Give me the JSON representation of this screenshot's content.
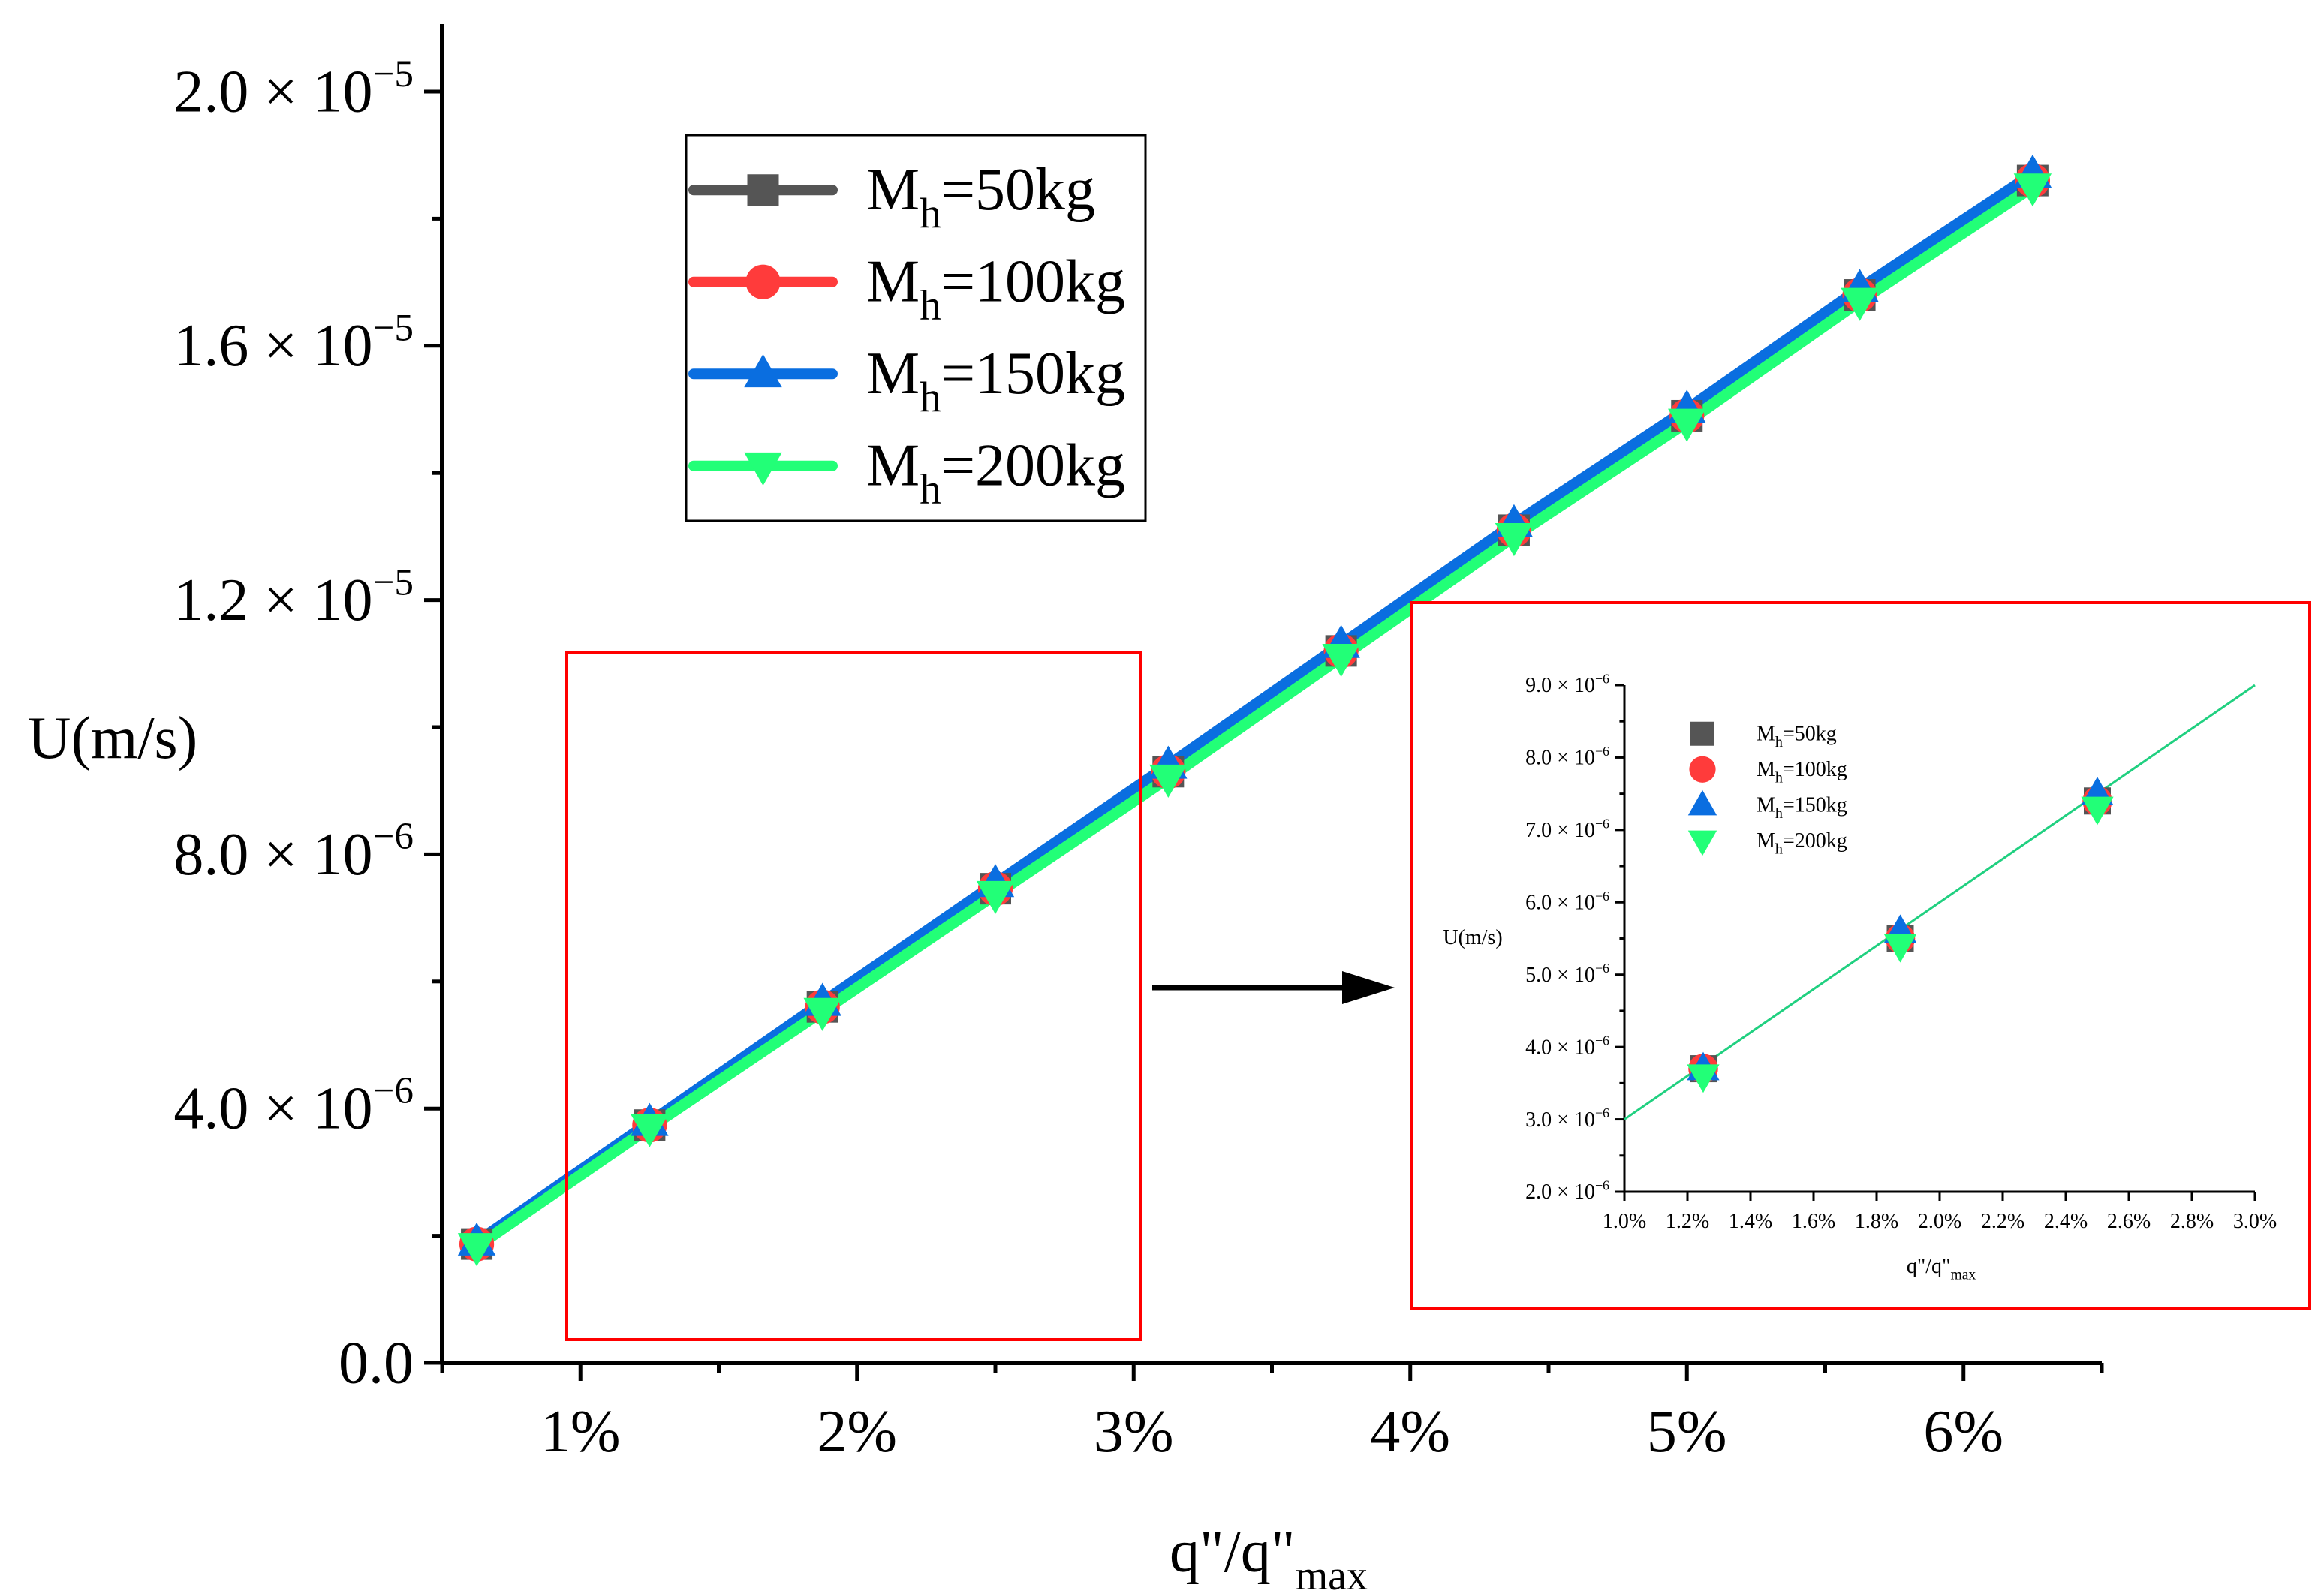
{
  "colors": {
    "axis": "#000000",
    "frame": "#ff0000",
    "s50": "#555555",
    "s100": "#ff3b3b",
    "s150": "#0a6ee0",
    "s200": "#22ff77",
    "inset_line": "#20d080"
  },
  "chart_data": [
    {
      "type": "line",
      "ylabel": "U(m/s)",
      "xlabel_main": "q\"/q\"",
      "xlabel_sub": "max",
      "xlim": [
        0.5,
        6.5
      ],
      "ylim": [
        0,
        2e-05
      ],
      "xticks": [
        {
          "v": 1,
          "label": "1%"
        },
        {
          "v": 2,
          "label": "2%"
        },
        {
          "v": 3,
          "label": "3%"
        },
        {
          "v": 4,
          "label": "4%"
        },
        {
          "v": 5,
          "label": "5%"
        },
        {
          "v": 6,
          "label": "6%"
        }
      ],
      "yticks": [
        {
          "v": 0,
          "mant": "0.0",
          "exp": ""
        },
        {
          "v": 4e-06,
          "mant": "4.0",
          "exp": "−6"
        },
        {
          "v": 8e-06,
          "mant": "8.0",
          "exp": "−6"
        },
        {
          "v": 1.2e-05,
          "mant": "1.2",
          "exp": "−5"
        },
        {
          "v": 1.6e-05,
          "mant": "1.6",
          "exp": "−5"
        },
        {
          "v": 2e-05,
          "mant": "2.0",
          "exp": "−5"
        }
      ],
      "x": [
        0.625,
        1.25,
        1.875,
        2.5,
        3.125,
        3.75,
        4.375,
        5.0,
        5.625,
        6.25
      ],
      "series": [
        {
          "name": "M",
          "sub": "h",
          "suffix": "=50kg",
          "marker": "square",
          "color_key": "s50",
          "values": [
            1.87e-06,
            3.74e-06,
            5.6e-06,
            7.46e-06,
            9.3e-06,
            1.12e-05,
            1.31e-05,
            1.49e-05,
            1.68e-05,
            1.86e-05
          ]
        },
        {
          "name": "M",
          "sub": "h",
          "suffix": "=100kg",
          "marker": "circle",
          "color_key": "s100",
          "values": [
            1.87e-06,
            3.74e-06,
            5.6e-06,
            7.46e-06,
            9.3e-06,
            1.12e-05,
            1.31e-05,
            1.49e-05,
            1.68e-05,
            1.86e-05
          ]
        },
        {
          "name": "M",
          "sub": "h",
          "suffix": "=150kg",
          "marker": "triangle-up",
          "color_key": "s150",
          "values": [
            1.9e-06,
            3.78e-06,
            5.67e-06,
            7.54e-06,
            9.4e-06,
            1.13e-05,
            1.32e-05,
            1.5e-05,
            1.69e-05,
            1.87e-05
          ]
        },
        {
          "name": "M",
          "sub": "h",
          "suffix": "=200kg",
          "marker": "triangle-down",
          "color_key": "s200",
          "values": [
            1.83e-06,
            3.7e-06,
            5.53e-06,
            7.37e-06,
            9.2e-06,
            1.11e-05,
            1.3e-05,
            1.48e-05,
            1.67e-05,
            1.85e-05
          ]
        }
      ]
    },
    {
      "type": "line",
      "ylabel": "U(m/s)",
      "xlabel_main": "q\"/q\"",
      "xlabel_sub": "max",
      "xlim": [
        1.0,
        3.0
      ],
      "ylim": [
        2e-06,
        9e-06
      ],
      "xticks": [
        {
          "v": 1.0,
          "label": "1.0%"
        },
        {
          "v": 1.2,
          "label": "1.2%"
        },
        {
          "v": 1.4,
          "label": "1.4%"
        },
        {
          "v": 1.6,
          "label": "1.6%"
        },
        {
          "v": 1.8,
          "label": "1.8%"
        },
        {
          "v": 2.0,
          "label": "2.0%"
        },
        {
          "v": 2.2,
          "label": "2.2%"
        },
        {
          "v": 2.4,
          "label": "2.4%"
        },
        {
          "v": 2.6,
          "label": "2.6%"
        },
        {
          "v": 2.8,
          "label": "2.8%"
        },
        {
          "v": 3.0,
          "label": "3.0%"
        }
      ],
      "yticks": [
        {
          "v": 2e-06,
          "mant": "2.0",
          "exp": "−6"
        },
        {
          "v": 3e-06,
          "mant": "3.0",
          "exp": "−6"
        },
        {
          "v": 4e-06,
          "mant": "4.0",
          "exp": "−6"
        },
        {
          "v": 5e-06,
          "mant": "5.0",
          "exp": "−6"
        },
        {
          "v": 6e-06,
          "mant": "6.0",
          "exp": "−6"
        },
        {
          "v": 7e-06,
          "mant": "7.0",
          "exp": "−6"
        },
        {
          "v": 8e-06,
          "mant": "8.0",
          "exp": "−6"
        },
        {
          "v": 9e-06,
          "mant": "9.0",
          "exp": "−6"
        }
      ],
      "x": [
        1.25,
        1.875,
        2.5
      ],
      "fit_line": {
        "x": [
          1.0,
          3.0
        ],
        "y": [
          3e-06,
          9e-06
        ]
      },
      "series": [
        {
          "name": "M",
          "sub": "h",
          "suffix": "=50kg",
          "marker": "square",
          "color_key": "s50",
          "values": [
            3.7e-06,
            5.5e-06,
            7.4e-06
          ]
        },
        {
          "name": "M",
          "sub": "h",
          "suffix": "=100kg",
          "marker": "circle",
          "color_key": "s100",
          "values": [
            3.7e-06,
            5.5e-06,
            7.4e-06
          ]
        },
        {
          "name": "M",
          "sub": "h",
          "suffix": "=150kg",
          "marker": "triangle-up",
          "color_key": "s150",
          "values": [
            3.7e-06,
            5.6e-06,
            7.5e-06
          ]
        },
        {
          "name": "M",
          "sub": "h",
          "suffix": "=200kg",
          "marker": "triangle-down",
          "color_key": "s200",
          "values": [
            3.6e-06,
            5.4e-06,
            7.3e-06
          ]
        }
      ]
    }
  ]
}
